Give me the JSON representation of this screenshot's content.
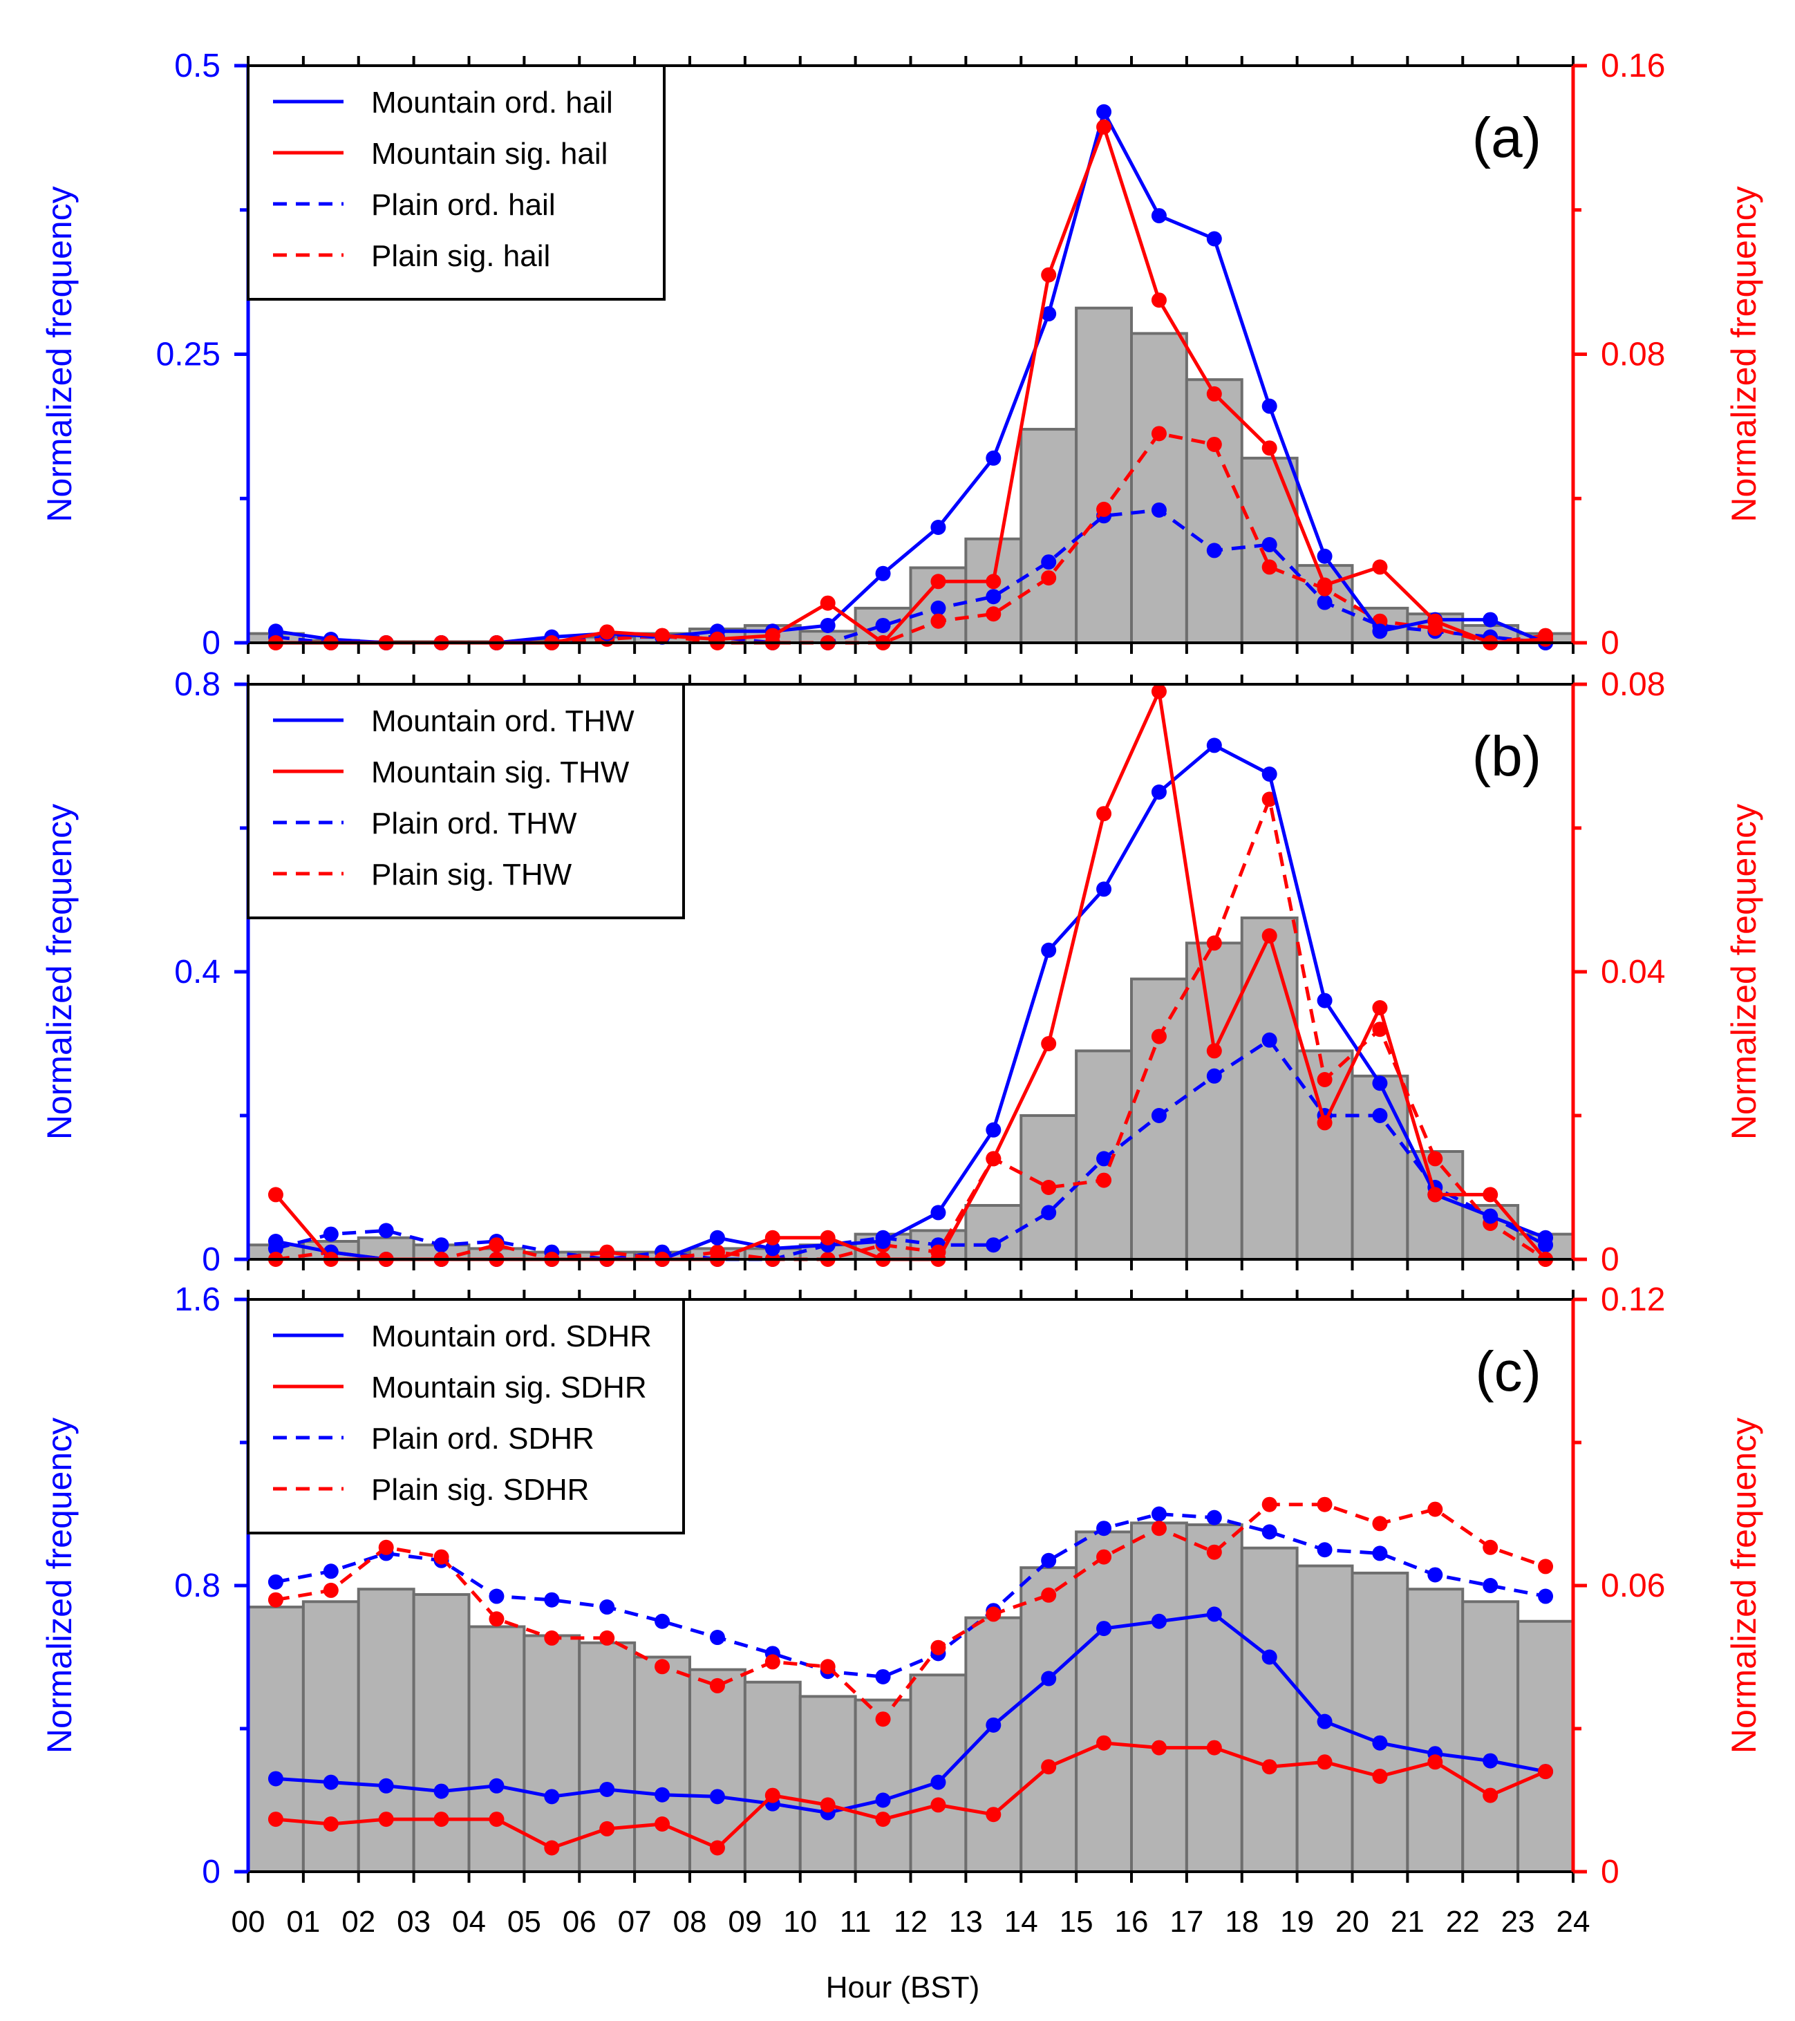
{
  "hours_axis": {
    "tick_labels": [
      "00",
      "01",
      "02",
      "03",
      "04",
      "05",
      "06",
      "07",
      "08",
      "09",
      "10",
      "11",
      "12",
      "13",
      "14",
      "15",
      "16",
      "17",
      "18",
      "19",
      "20",
      "21",
      "22",
      "23",
      "24"
    ],
    "xlabel": "Hour (BST)"
  },
  "colors": {
    "blue": "#0000ff",
    "red": "#ff0000",
    "bar_fill": "#b4b4b4",
    "bar_edge": "#6e6e6e"
  },
  "panels": [
    {
      "panel_label": "(a)",
      "left_axis": {
        "label": "Normalized frequency",
        "ticks": [
          "0",
          "0.25",
          "0.5"
        ]
      },
      "right_axis": {
        "label": "Normalized frequency",
        "ticks": [
          "0",
          "0.08",
          "0.16"
        ]
      },
      "legend": [
        "Mountain ord. hail",
        "Mountain sig. hail",
        "Plain ord. hail",
        "Plain sig. hail"
      ]
    },
    {
      "panel_label": "(b)",
      "left_axis": {
        "label": "Normalized frequency",
        "ticks": [
          "0",
          "0.4",
          "0.8"
        ]
      },
      "right_axis": {
        "label": "Normalized frequency",
        "ticks": [
          "0",
          "0.04",
          "0.08"
        ]
      },
      "legend": [
        "Mountain ord. THW",
        "Mountain sig. THW",
        "Plain ord. THW",
        "Plain sig. THW"
      ]
    },
    {
      "panel_label": "(c)",
      "left_axis": {
        "label": "Normalized frequency",
        "ticks": [
          "0",
          "0.8",
          "1.6"
        ]
      },
      "right_axis": {
        "label": "Normalized frequency",
        "ticks": [
          "0",
          "0.06",
          "0.12"
        ]
      },
      "legend": [
        "Mountain ord. SDHR",
        "Mountain sig. SDHR",
        "Plain ord. SDHR",
        "Plain sig. SDHR"
      ]
    }
  ],
  "chart_data": [
    {
      "type": "bar+line",
      "panel": "(a)",
      "x_hours_center": [
        0.5,
        1.5,
        2.5,
        3.5,
        4.5,
        5.5,
        6.5,
        7.5,
        8.5,
        9.5,
        10.5,
        11.5,
        12.5,
        13.5,
        14.5,
        15.5,
        16.5,
        17.5,
        18.5,
        19.5,
        20.5,
        21.5,
        22.5,
        23.5
      ],
      "xlim": [
        0,
        24
      ],
      "left_ylim": [
        0,
        0.5
      ],
      "right_ylim": [
        0,
        0.16
      ],
      "bars_left_axis": [
        0.008,
        0.002,
        0.001,
        0.001,
        0.001,
        0.002,
        0.005,
        0.008,
        0.012,
        0.015,
        0.01,
        0.03,
        0.065,
        0.09,
        0.185,
        0.29,
        0.268,
        0.228,
        0.16,
        0.067,
        0.03,
        0.025,
        0.015,
        0.008
      ],
      "series": [
        {
          "name": "Mountain ord. hail",
          "axis": "left",
          "color": "blue",
          "dash": false,
          "values": [
            0.01,
            0.003,
            0,
            0,
            0,
            0.005,
            0.008,
            0.005,
            0.01,
            0.01,
            0.015,
            0.06,
            0.1,
            0.16,
            0.285,
            0.46,
            0.37,
            0.35,
            0.205,
            0.075,
            0.01,
            0.02,
            0.02,
            0
          ]
        },
        {
          "name": "Mountain sig. hail",
          "axis": "right",
          "color": "red",
          "dash": false,
          "values": [
            0,
            0,
            0,
            0,
            0,
            0,
            0.003,
            0.002,
            0.001,
            0.002,
            0.011,
            0,
            0.017,
            0.017,
            0.102,
            0.143,
            0.095,
            0.069,
            0.054,
            0.016,
            0.021,
            0.006,
            0,
            0.001
          ]
        },
        {
          "name": "Plain ord. hail",
          "axis": "left",
          "color": "blue",
          "dash": true,
          "values": [
            0.005,
            0,
            0,
            0,
            0,
            0,
            0.005,
            0.005,
            0.005,
            0,
            0,
            0.015,
            0.03,
            0.04,
            0.07,
            0.11,
            0.115,
            0.08,
            0.085,
            0.035,
            0.015,
            0.01,
            0.005,
            0
          ]
        },
        {
          "name": "Plain sig. hail",
          "axis": "right",
          "color": "red",
          "dash": true,
          "values": [
            0,
            0,
            0,
            0,
            0,
            0,
            0.001,
            0.002,
            0,
            0,
            0,
            0,
            0.006,
            0.008,
            0.018,
            0.037,
            0.058,
            0.055,
            0.021,
            0.015,
            0.006,
            0.004,
            0,
            0.002
          ]
        }
      ]
    },
    {
      "type": "bar+line",
      "panel": "(b)",
      "x_hours_center": [
        0.5,
        1.5,
        2.5,
        3.5,
        4.5,
        5.5,
        6.5,
        7.5,
        8.5,
        9.5,
        10.5,
        11.5,
        12.5,
        13.5,
        14.5,
        15.5,
        16.5,
        17.5,
        18.5,
        19.5,
        20.5,
        21.5,
        22.5,
        23.5
      ],
      "xlim": [
        0,
        24
      ],
      "left_ylim": [
        0,
        0.8
      ],
      "right_ylim": [
        0,
        0.08
      ],
      "bars_left_axis": [
        0.02,
        0.025,
        0.03,
        0.02,
        0.015,
        0.01,
        0.01,
        0.01,
        0.015,
        0.015,
        0.02,
        0.035,
        0.04,
        0.075,
        0.2,
        0.29,
        0.39,
        0.44,
        0.475,
        0.29,
        0.255,
        0.15,
        0.075,
        0.035
      ],
      "series": [
        {
          "name": "Mountain ord. THW",
          "axis": "left",
          "color": "blue",
          "dash": false,
          "values": [
            0.025,
            0.01,
            0,
            0,
            0,
            0,
            0,
            0,
            0.03,
            0.015,
            0.02,
            0.025,
            0.065,
            0.18,
            0.43,
            0.515,
            0.65,
            0.715,
            0.675,
            0.36,
            0.245,
            0.09,
            0.06,
            0.03
          ]
        },
        {
          "name": "Mountain sig. THW",
          "axis": "right",
          "color": "red",
          "dash": false,
          "values": [
            0.009,
            0,
            0,
            0,
            0,
            0,
            0,
            0,
            0,
            0.003,
            0.003,
            0,
            0,
            0.014,
            0.03,
            0.062,
            0.079,
            0.029,
            0.045,
            0.019,
            0.035,
            0.009,
            0.009,
            0
          ]
        },
        {
          "name": "Plain ord. THW",
          "axis": "left",
          "color": "blue",
          "dash": true,
          "values": [
            0.015,
            0.035,
            0.04,
            0.02,
            0.025,
            0.01,
            0,
            0.01,
            0,
            0,
            0.02,
            0.03,
            0.02,
            0.02,
            0.065,
            0.14,
            0.2,
            0.255,
            0.305,
            0.2,
            0.2,
            0.1,
            0.06,
            0.02
          ]
        },
        {
          "name": "Plain sig. THW",
          "axis": "right",
          "color": "red",
          "dash": true,
          "values": [
            0,
            0.001,
            0,
            0,
            0.002,
            0,
            0.001,
            0,
            0.001,
            0,
            0,
            0.002,
            0.001,
            0.014,
            0.01,
            0.011,
            0.031,
            0.044,
            0.064,
            0.025,
            0.032,
            0.014,
            0.005,
            0
          ]
        }
      ]
    },
    {
      "type": "bar+line",
      "panel": "(c)",
      "x_hours_center": [
        0.5,
        1.5,
        2.5,
        3.5,
        4.5,
        5.5,
        6.5,
        7.5,
        8.5,
        9.5,
        10.5,
        11.5,
        12.5,
        13.5,
        14.5,
        15.5,
        16.5,
        17.5,
        18.5,
        19.5,
        20.5,
        21.5,
        22.5,
        23.5
      ],
      "xlim": [
        0,
        24
      ],
      "left_ylim": [
        0,
        1.6
      ],
      "right_ylim": [
        0,
        0.12
      ],
      "bars_left_axis": [
        0.74,
        0.755,
        0.79,
        0.775,
        0.685,
        0.66,
        0.64,
        0.6,
        0.565,
        0.53,
        0.49,
        0.48,
        0.55,
        0.71,
        0.85,
        0.95,
        0.975,
        0.97,
        0.905,
        0.855,
        0.835,
        0.79,
        0.755,
        0.7
      ],
      "series": [
        {
          "name": "Mountain ord. SDHR",
          "axis": "left",
          "color": "blue",
          "dash": false,
          "values": [
            0.26,
            0.25,
            0.24,
            0.225,
            0.24,
            0.21,
            0.23,
            0.215,
            0.21,
            0.19,
            0.165,
            0.2,
            0.25,
            0.41,
            0.54,
            0.68,
            0.7,
            0.72,
            0.6,
            0.42,
            0.36,
            0.33,
            0.31,
            0.28
          ]
        },
        {
          "name": "Mountain sig. SDHR",
          "axis": "right",
          "color": "red",
          "dash": false,
          "values": [
            0.011,
            0.01,
            0.011,
            0.011,
            0.011,
            0.005,
            0.009,
            0.01,
            0.005,
            0.016,
            0.014,
            0.011,
            0.014,
            0.012,
            0.022,
            0.027,
            0.026,
            0.026,
            0.022,
            0.023,
            0.02,
            0.023,
            0.016,
            0.021
          ]
        },
        {
          "name": "Plain ord. SDHR",
          "axis": "left",
          "color": "blue",
          "dash": true,
          "values": [
            0.81,
            0.84,
            0.89,
            0.87,
            0.77,
            0.76,
            0.74,
            0.7,
            0.655,
            0.61,
            0.56,
            0.545,
            0.61,
            0.73,
            0.87,
            0.96,
            1.0,
            0.99,
            0.95,
            0.9,
            0.89,
            0.83,
            0.8,
            0.77
          ]
        },
        {
          "name": "Plain sig. SDHR",
          "axis": "right",
          "color": "red",
          "dash": true,
          "values": [
            0.057,
            0.059,
            0.068,
            0.066,
            0.053,
            0.049,
            0.049,
            0.043,
            0.039,
            0.044,
            0.043,
            0.032,
            0.047,
            0.054,
            0.058,
            0.066,
            0.072,
            0.067,
            0.077,
            0.077,
            0.073,
            0.076,
            0.068,
            0.064
          ]
        }
      ]
    }
  ]
}
